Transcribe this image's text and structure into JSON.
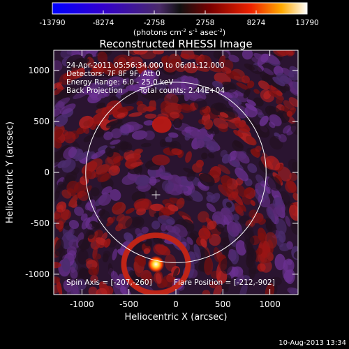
{
  "colorbar": {
    "ticks": [
      "-13790",
      "-8274",
      "-2758",
      "2758",
      "8274",
      "13790"
    ],
    "unit_main": "(photons cm",
    "unit_sup1": "-2",
    "unit_mid": " s",
    "unit_sup2": "-1",
    "unit_mid2": " asec",
    "unit_sup3": "-2",
    "unit_end": ")"
  },
  "chart_data": {
    "type": "heatmap",
    "title": "Reconstructed RHESSI Image",
    "xlabel": "Heliocentric X (arcsec)",
    "ylabel": "Heliocentric Y (arcsec)",
    "xlim": [
      -1300,
      1300
    ],
    "ylim": [
      -1200,
      1200
    ],
    "xticks": [
      -1000,
      -500,
      0,
      500,
      1000
    ],
    "yticks": [
      -1000,
      -500,
      0,
      500,
      1000
    ],
    "zlim": [
      -13790,
      13790
    ],
    "solar_limb_radius": 960,
    "solar_center": [
      0,
      0
    ],
    "cross_marker": [
      -212,
      -220
    ],
    "flare_source": {
      "x": -212,
      "y": -902
    },
    "annotations": {
      "line1": "24-Apr-2011 05:56:34.000 to 06:01:12.000",
      "line2": "Detectors: 7F 8F 9F, Att 0",
      "line3": "Energy Range: 6.0 - 25.0 keV",
      "line4_left": "Back Projection",
      "line4_right": "Total counts: 2.44E+04",
      "bottom_left": "Spin Axis = [-207,-260]",
      "bottom_right": "Flare Position = [-212,-902]"
    },
    "colors": {
      "colormap": [
        "#0000ff",
        "#5500bb",
        "#6a2aa0",
        "#1a1a1a",
        "#8b0000",
        "#ff2a00",
        "#ffcc00",
        "#ffffff"
      ],
      "axis": "#ffffff"
    }
  },
  "footer": {
    "timestamp": "10-Aug-2013 13:34"
  }
}
